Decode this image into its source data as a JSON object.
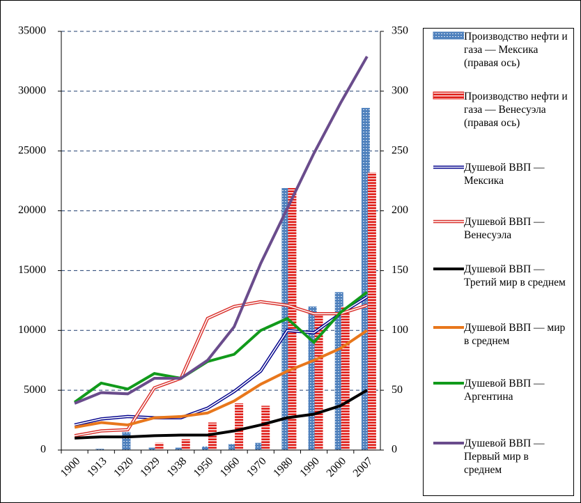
{
  "chart_data": {
    "type": "bar",
    "categories": [
      "1900",
      "1913",
      "1920",
      "1929",
      "1938",
      "1950",
      "1960",
      "1970",
      "1980",
      "1990",
      "2000",
      "2007"
    ],
    "ylim": [
      0,
      35000
    ],
    "yticks": [
      0,
      5000,
      10000,
      15000,
      20000,
      25000,
      30000,
      35000
    ],
    "y2lim": [
      0,
      350
    ],
    "y2ticks": [
      0,
      50,
      100,
      150,
      200,
      250,
      300,
      350
    ],
    "grid": true,
    "legend": "right",
    "series": [
      {
        "name": "Производство нефти и газа — Мексика (правая ось)",
        "type": "bar",
        "axis": "y2",
        "color": "#4f81bd",
        "values": [
          0,
          1,
          15,
          2,
          2,
          3,
          5,
          6,
          219,
          120,
          132,
          286
        ]
      },
      {
        "name": "Производство нефти и газа — Венесуэла (правая ось)",
        "type": "bar",
        "axis": "y2",
        "color": "#e0201b",
        "values": [
          0,
          0,
          0,
          6,
          9,
          23,
          39,
          37,
          219,
          115,
          120,
          232
        ]
      },
      {
        "name": "Душевой ВВП — Мексика",
        "type": "line",
        "style": "double",
        "color": "#00008b",
        "values": [
          2100,
          2600,
          2800,
          2700,
          2700,
          3500,
          4900,
          6600,
          10000,
          9800,
          11400,
          12800
        ]
      },
      {
        "name": "Душевой ВВП — Венесуэла",
        "type": "line",
        "style": "double",
        "color": "#d9302b",
        "values": [
          1200,
          1600,
          1700,
          5200,
          6000,
          11000,
          12000,
          12400,
          12100,
          11400,
          11400,
          12100
        ]
      },
      {
        "name": "Душевой ВВП — Третий мир в среднем",
        "type": "line",
        "color": "#000000",
        "values": [
          1000,
          1100,
          1100,
          1200,
          1250,
          1250,
          1600,
          2100,
          2700,
          3000,
          3700,
          5000
        ]
      },
      {
        "name": "Душевой ВВП — мир в среднем",
        "type": "line",
        "color": "#e8771c",
        "values": [
          1900,
          2300,
          2100,
          2700,
          2800,
          3100,
          4100,
          5500,
          6600,
          7500,
          8500,
          10000
        ]
      },
      {
        "name": "Душевой ВВП — Аргентина",
        "type": "line",
        "color": "#119a1b",
        "values": [
          4000,
          5600,
          5100,
          6400,
          6000,
          7400,
          8000,
          10000,
          11000,
          9000,
          11500,
          13200
        ]
      },
      {
        "name": "Душевой ВВП — Первый мир в среднем",
        "type": "line",
        "color": "#6a4c8c",
        "values": [
          3900,
          4800,
          4700,
          6000,
          6000,
          7500,
          10300,
          15600,
          20200,
          24800,
          29000,
          32900
        ]
      }
    ]
  }
}
